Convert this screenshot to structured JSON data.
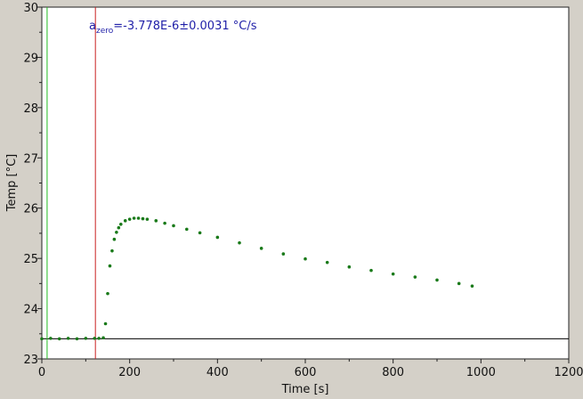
{
  "chart_data": {
    "type": "scatter",
    "xlabel": "Time [s]",
    "ylabel": "Temp [°C]",
    "xlim": [
      0,
      1200
    ],
    "ylim": [
      23,
      30
    ],
    "xticks": [
      0,
      200,
      400,
      600,
      800,
      1000,
      1200
    ],
    "yticks": [
      23,
      24,
      25,
      26,
      27,
      28,
      29,
      30
    ],
    "grid": false,
    "annotation": {
      "prefix": "a",
      "subscript": "zero",
      "value_text": "=-3.778E-6±0.0031 °C/s",
      "color": "#1f1fa8"
    },
    "reference_lines": {
      "horizontal": {
        "y": 23.4,
        "color": "#000000"
      },
      "vertical": [
        {
          "x": 12,
          "color": "#22bb22"
        },
        {
          "x": 122,
          "color": "#c82020"
        }
      ]
    },
    "series": [
      {
        "color": "#1a7a1a",
        "x": [
          0,
          20,
          40,
          60,
          80,
          100,
          120,
          130,
          140,
          145,
          150,
          155,
          160,
          165,
          170,
          175,
          180,
          190,
          200,
          210,
          220,
          230,
          240,
          260,
          280,
          300,
          330,
          360,
          400,
          450,
          500,
          550,
          600,
          650,
          700,
          750,
          800,
          850,
          900,
          950,
          980
        ],
        "y": [
          23.4,
          23.41,
          23.4,
          23.41,
          23.4,
          23.41,
          23.41,
          23.41,
          23.42,
          23.7,
          24.3,
          24.85,
          25.15,
          25.38,
          25.52,
          25.61,
          25.68,
          25.75,
          25.78,
          25.8,
          25.8,
          25.79,
          25.78,
          25.75,
          25.7,
          25.65,
          25.58,
          25.51,
          25.42,
          25.31,
          25.2,
          25.09,
          24.99,
          24.92,
          24.83,
          24.76,
          24.69,
          24.63,
          24.57,
          24.5,
          24.45
        ]
      }
    ]
  }
}
